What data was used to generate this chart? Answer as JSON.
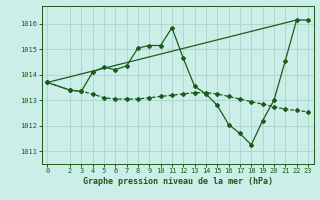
{
  "title": "Graphe pression niveau de la mer (hPa)",
  "background_color": "#cceee8",
  "line_color": "#1a5c1a",
  "grid_color": "#aad4cc",
  "ylim": [
    1010.5,
    1016.7
  ],
  "xlim": [
    -0.5,
    23.5
  ],
  "yticks": [
    1011,
    1012,
    1013,
    1014,
    1015,
    1016
  ],
  "xticks": [
    0,
    2,
    3,
    4,
    5,
    6,
    7,
    8,
    9,
    10,
    11,
    12,
    13,
    14,
    15,
    16,
    17,
    18,
    19,
    20,
    21,
    22,
    23
  ],
  "line1_x": [
    0,
    2,
    3,
    4,
    5,
    6,
    7,
    8,
    9,
    10,
    11,
    12,
    13,
    14,
    15,
    16,
    17,
    18,
    19,
    20,
    21,
    22,
    23
  ],
  "line1_y": [
    1013.7,
    1013.4,
    1013.35,
    1014.1,
    1014.3,
    1014.2,
    1014.35,
    1015.05,
    1015.15,
    1015.15,
    1015.85,
    1014.65,
    1013.55,
    1013.25,
    1012.8,
    1012.05,
    1011.7,
    1011.25,
    1012.2,
    1013.0,
    1014.55,
    1016.15,
    1016.15
  ],
  "line2_x": [
    0,
    2,
    3,
    4,
    5,
    6,
    7,
    8,
    9,
    10,
    11,
    12,
    13,
    14,
    15,
    16,
    17,
    18,
    19,
    20,
    21,
    22,
    23
  ],
  "line2_y": [
    1013.7,
    1013.4,
    1013.35,
    1013.25,
    1013.1,
    1013.05,
    1013.05,
    1013.05,
    1013.1,
    1013.15,
    1013.2,
    1013.25,
    1013.3,
    1013.3,
    1013.25,
    1013.15,
    1013.05,
    1012.95,
    1012.85,
    1012.75,
    1012.65,
    1012.6,
    1012.55
  ],
  "line3_x": [
    0,
    22
  ],
  "line3_y": [
    1013.7,
    1016.15
  ],
  "markersize": 2.0,
  "linewidth": 0.9,
  "title_fontsize": 6.0,
  "tick_fontsize": 5.0
}
